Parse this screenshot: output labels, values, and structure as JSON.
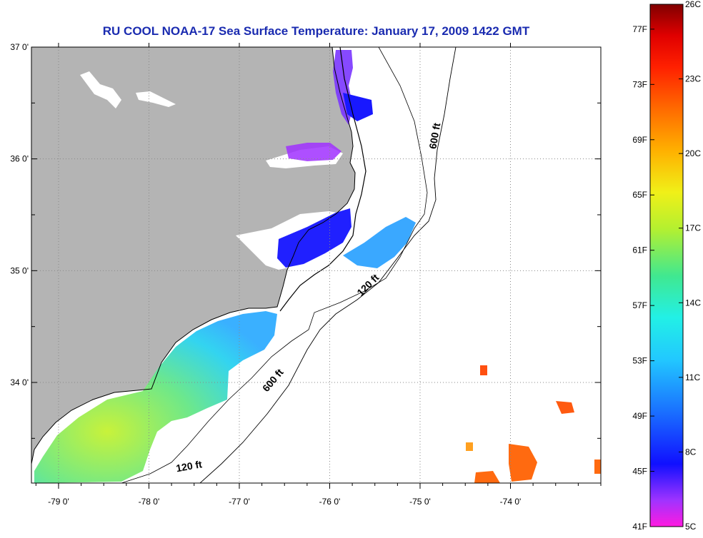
{
  "title": "RU COOL  NOAA-17  Sea Surface Temperature:  January 17, 2009 1422 GMT",
  "map": {
    "lon_range": [
      -79.3,
      -73.0
    ],
    "lat_range": [
      33.1,
      37.0
    ],
    "lat_ticks": [
      {
        "value": 37,
        "label": "37 0'"
      },
      {
        "value": 36,
        "label": "36 0'"
      },
      {
        "value": 35,
        "label": "35 0'"
      },
      {
        "value": 34,
        "label": "34 0'"
      }
    ],
    "lon_ticks": [
      {
        "value": -79,
        "label": "-79 0'"
      },
      {
        "value": -78,
        "label": "-78 0'"
      },
      {
        "value": -77,
        "label": "-77 0'"
      },
      {
        "value": -76,
        "label": "-76 0'"
      },
      {
        "value": -75,
        "label": "-75 0'"
      },
      {
        "value": -74,
        "label": "-74 0'"
      }
    ],
    "contour_labels": [
      {
        "text": "600 ft",
        "lon": -74.8,
        "lat": 36.2
      },
      {
        "text": "120 ft",
        "lon": -75.55,
        "lat": 34.85
      },
      {
        "text": "600 ft",
        "lon": -76.6,
        "lat": 34.0
      },
      {
        "text": "120 ft",
        "lon": -77.55,
        "lat": 33.22
      }
    ],
    "colors": {
      "land": "#b4b4b4",
      "water_no_data": "#ffffff",
      "grid": "#888888"
    }
  },
  "colorbar": {
    "min_c": 5,
    "max_c": 26,
    "celsius_labels": [
      "26C",
      "23C",
      "20C",
      "17C",
      "14C",
      "11C",
      "8C",
      "5C"
    ],
    "fahrenheit_labels": [
      "77F",
      "73F",
      "69F",
      "65F",
      "61F",
      "57F",
      "53F",
      "49F",
      "45F",
      "41F"
    ]
  }
}
